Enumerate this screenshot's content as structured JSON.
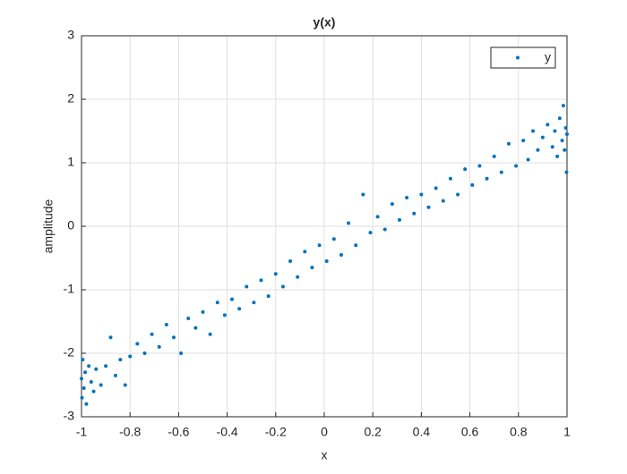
{
  "chart_data": {
    "type": "scatter",
    "title": "y(x)",
    "x_label": "x",
    "y_label": "amplitude",
    "xlim": [
      -1,
      1
    ],
    "ylim": [
      -3,
      3
    ],
    "xticks": [
      -1,
      -0.8,
      -0.6,
      -0.4,
      -0.2,
      0,
      0.2,
      0.4,
      0.6,
      0.8,
      1
    ],
    "yticks": [
      -3,
      -2,
      -1,
      0,
      1,
      2,
      3
    ],
    "grid": true,
    "legend": "top-right",
    "series": [
      {
        "name": "y",
        "color": "#0072bd",
        "x": [
          -1,
          -0.998,
          -0.995,
          -0.99,
          -0.985,
          -0.98,
          -0.97,
          -0.96,
          -0.95,
          -0.94,
          -0.92,
          -0.9,
          -0.88,
          -0.86,
          -0.84,
          -0.82,
          -0.8,
          -0.77,
          -0.74,
          -0.71,
          -0.68,
          -0.65,
          -0.62,
          -0.59,
          -0.56,
          -0.53,
          -0.5,
          -0.47,
          -0.44,
          -0.41,
          -0.38,
          -0.35,
          -0.32,
          -0.29,
          -0.26,
          -0.23,
          -0.2,
          -0.17,
          -0.14,
          -0.11,
          -0.08,
          -0.05,
          -0.02,
          0.01,
          0.04,
          0.07,
          0.1,
          0.13,
          0.16,
          0.19,
          0.22,
          0.25,
          0.28,
          0.31,
          0.34,
          0.37,
          0.4,
          0.43,
          0.46,
          0.49,
          0.52,
          0.55,
          0.58,
          0.61,
          0.64,
          0.67,
          0.7,
          0.73,
          0.76,
          0.79,
          0.82,
          0.84,
          0.86,
          0.88,
          0.9,
          0.92,
          0.94,
          0.95,
          0.96,
          0.97,
          0.98,
          0.985,
          0.99,
          0.995,
          0.998,
          1
        ],
        "values": [
          -2.4,
          -2.7,
          -2.1,
          -2.55,
          -2.3,
          -2.8,
          -2.2,
          -2.45,
          -2.6,
          -2.25,
          -2.5,
          -2.2,
          -1.75,
          -2.35,
          -2.1,
          -2.5,
          -2.05,
          -1.85,
          -2.0,
          -1.7,
          -1.9,
          -1.55,
          -1.75,
          -2.0,
          -1.45,
          -1.6,
          -1.35,
          -1.7,
          -1.2,
          -1.4,
          -1.15,
          -1.3,
          -0.95,
          -1.2,
          -0.85,
          -1.1,
          -0.75,
          -0.95,
          -0.55,
          -0.8,
          -0.4,
          -0.65,
          -0.3,
          -0.55,
          -0.2,
          -0.45,
          0.05,
          -0.3,
          0.5,
          -0.1,
          0.15,
          -0.05,
          0.35,
          0.1,
          0.45,
          0.2,
          0.5,
          0.3,
          0.6,
          0.4,
          0.75,
          0.5,
          0.9,
          0.65,
          0.95,
          0.75,
          1.1,
          0.85,
          1.3,
          0.95,
          1.35,
          1.05,
          1.5,
          1.2,
          1.4,
          1.6,
          1.25,
          1.5,
          1.1,
          1.7,
          1.35,
          1.9,
          1.2,
          1.55,
          0.85,
          1.45
        ]
      }
    ]
  }
}
